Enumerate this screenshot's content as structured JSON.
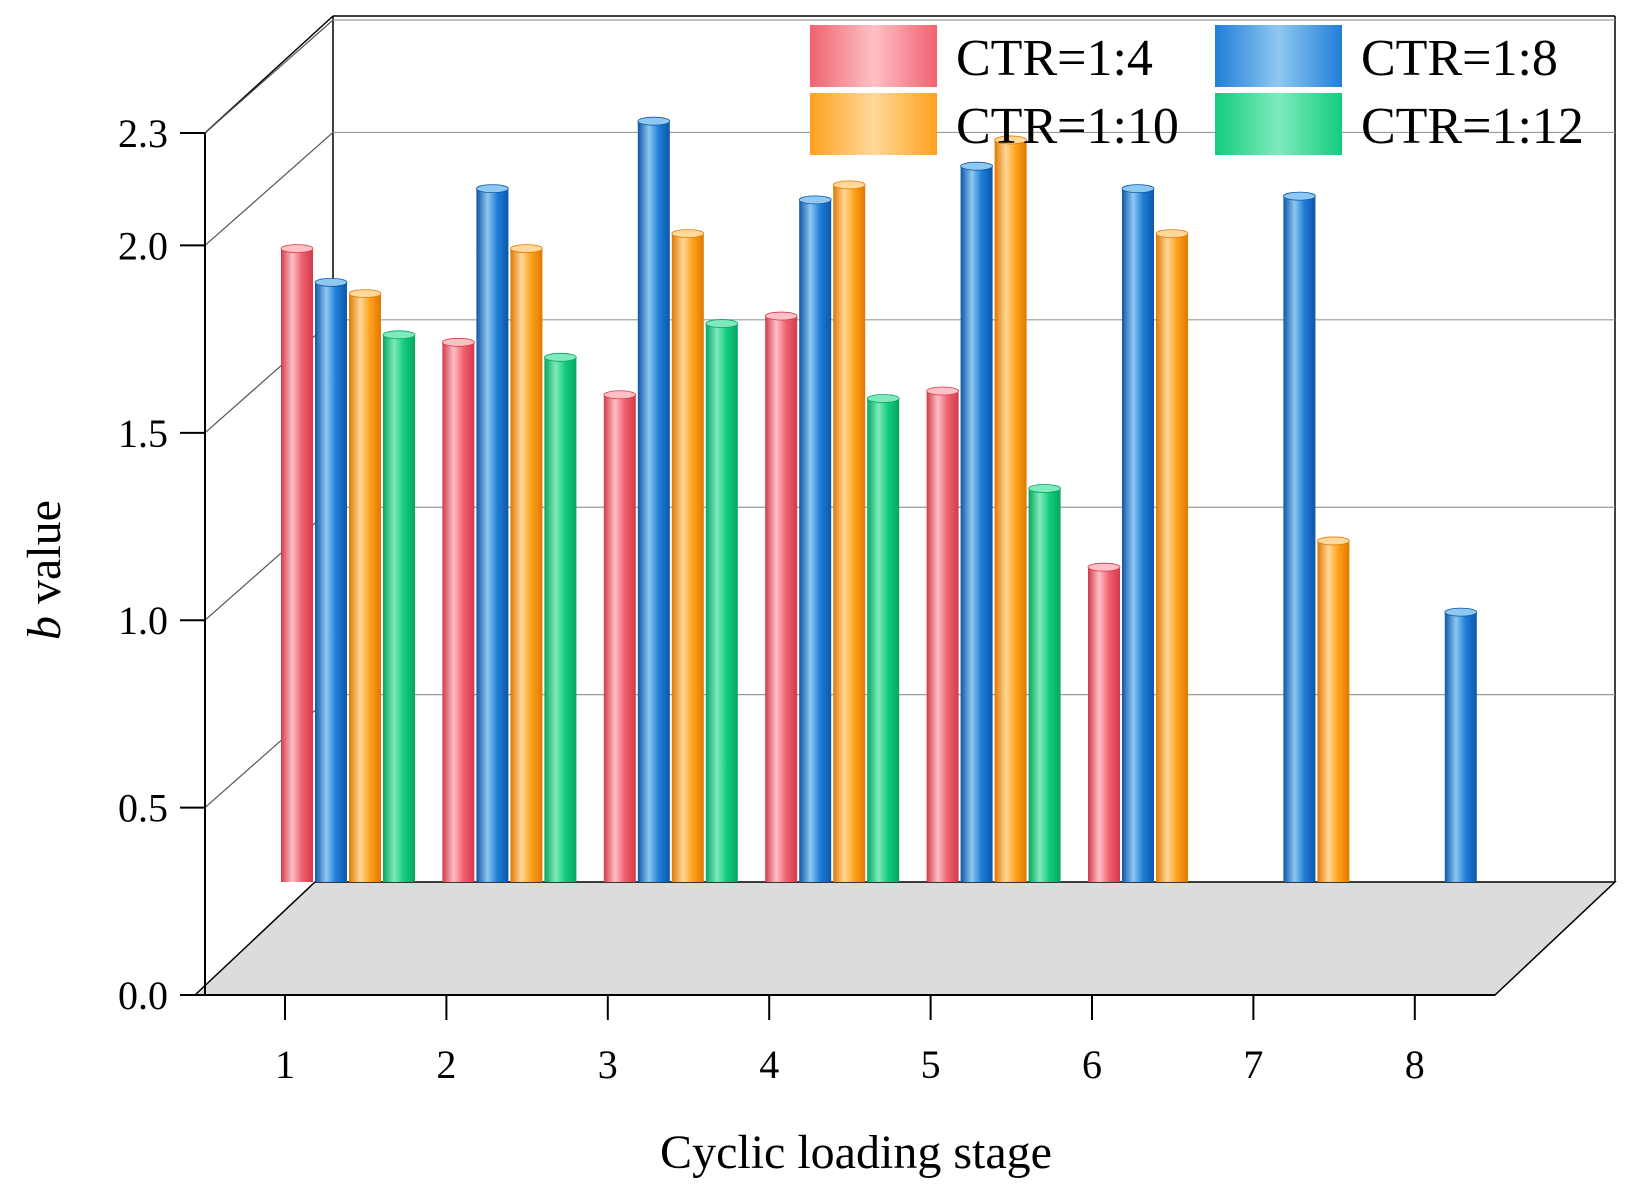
{
  "chart_data": {
    "type": "bar",
    "style": "3d",
    "title": "",
    "xlabel": "Cyclic loading stage",
    "ylabel_italic": "b",
    "ylabel_rest": " value",
    "ylim": [
      0,
      2.3
    ],
    "yticks": [
      0.0,
      0.5,
      1.0,
      1.5,
      2.0,
      2.3
    ],
    "ytick_labels": [
      "0.0",
      "0.5",
      "1.0",
      "1.5",
      "2.0",
      "2.3"
    ],
    "categories": [
      "1",
      "2",
      "3",
      "4",
      "5",
      "6",
      "7",
      "8"
    ],
    "grid": true,
    "legend_position": "top-right",
    "series": [
      {
        "name": "CTR=1:4",
        "color": "#f06270",
        "light": "#ffc0c6",
        "dark": "#d23a4a",
        "values": [
          1.69,
          1.44,
          1.3,
          1.51,
          1.31,
          0.84,
          null,
          null
        ]
      },
      {
        "name": "CTR=1:8",
        "color": "#1f7fd8",
        "light": "#8fc8f0",
        "dark": "#0d56a8",
        "values": [
          1.6,
          1.85,
          2.03,
          1.82,
          1.91,
          1.85,
          1.83,
          0.72
        ]
      },
      {
        "name": "CTR=1:10",
        "color": "#ffa21c",
        "light": "#ffd89a",
        "dark": "#e07800",
        "values": [
          1.57,
          1.69,
          1.73,
          1.86,
          1.98,
          1.73,
          0.91,
          null
        ]
      },
      {
        "name": "CTR=1:12",
        "color": "#12cc7e",
        "light": "#7feabd",
        "dark": "#07a55f",
        "values": [
          1.46,
          1.4,
          1.49,
          1.29,
          1.05,
          null,
          null,
          null
        ]
      }
    ]
  }
}
